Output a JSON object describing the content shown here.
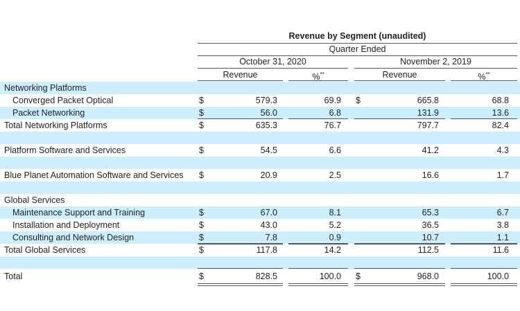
{
  "title": "Revenue by Segment (unaudited)",
  "period_header": "Quarter Ended",
  "periods": [
    "October 31, 2020",
    "November 2, 2019"
  ],
  "col_headers": {
    "revenue": "Revenue",
    "percent": "%",
    "footnote": "**"
  },
  "colors": {
    "row_highlight": "#cdeefd",
    "rule": "#555555"
  },
  "rows": [
    {
      "label": "Networking Platforms",
      "indent": false,
      "blue": true
    },
    {
      "label": "Converged Packet Optical",
      "indent": true,
      "blue": false,
      "d1": "$",
      "r1": "579.3",
      "p1": "69.9",
      "d2": "$",
      "r2": "665.8",
      "p2": "68.8"
    },
    {
      "label": "Packet Networking",
      "indent": true,
      "blue": true,
      "d1": "$",
      "r1": "56.0",
      "p1": "6.8",
      "r2": "131.9",
      "p2": "13.6",
      "rule_below": "thin"
    },
    {
      "label": "Total Networking Platforms",
      "indent": false,
      "blue": false,
      "d1": "$",
      "r1": "635.3",
      "p1": "76.7",
      "r2": "797.7",
      "p2": "82.4"
    },
    {
      "label": "",
      "blue": true
    },
    {
      "label": "Platform Software and Services",
      "indent": false,
      "blue": false,
      "d1": "$",
      "r1": "54.5",
      "p1": "6.6",
      "r2": "41.2",
      "p2": "4.3"
    },
    {
      "label": "",
      "blue": true
    },
    {
      "label": "Blue Planet Automation Software and Services",
      "indent": false,
      "blue": false,
      "d1": "$",
      "r1": "20.9",
      "p1": "2.5",
      "r2": "16.6",
      "p2": "1.7"
    },
    {
      "label": "",
      "blue": true
    },
    {
      "label": "Global Services",
      "indent": false,
      "blue": false
    },
    {
      "label": "Maintenance Support and Training",
      "indent": true,
      "blue": true,
      "d1": "$",
      "r1": "67.0",
      "p1": "8.1",
      "r2": "65.3",
      "p2": "6.7"
    },
    {
      "label": "Installation and Deployment",
      "indent": true,
      "blue": false,
      "d1": "$",
      "r1": "43.0",
      "p1": "5.2",
      "r2": "36.5",
      "p2": "3.8"
    },
    {
      "label": "Consulting and Network Design",
      "indent": true,
      "blue": true,
      "d1": "$",
      "r1": "7.8",
      "p1": "0.9",
      "r2": "10.7",
      "p2": "1.1",
      "rule_below": "thick"
    },
    {
      "label": "Total Global Services",
      "indent": false,
      "blue": false,
      "d1": "$",
      "r1": "117.8",
      "p1": "14.2",
      "r2": "112.5",
      "p2": "11.6"
    },
    {
      "label": "",
      "blue": true,
      "rule_below": "thin"
    },
    {
      "label": "Total",
      "indent": false,
      "blue": false,
      "d1": "$",
      "r1": "828.5",
      "p1": "100.0",
      "d2": "$",
      "r2": "968.0",
      "p2": "100.0",
      "rule_below": "double",
      "gap": true
    }
  ]
}
